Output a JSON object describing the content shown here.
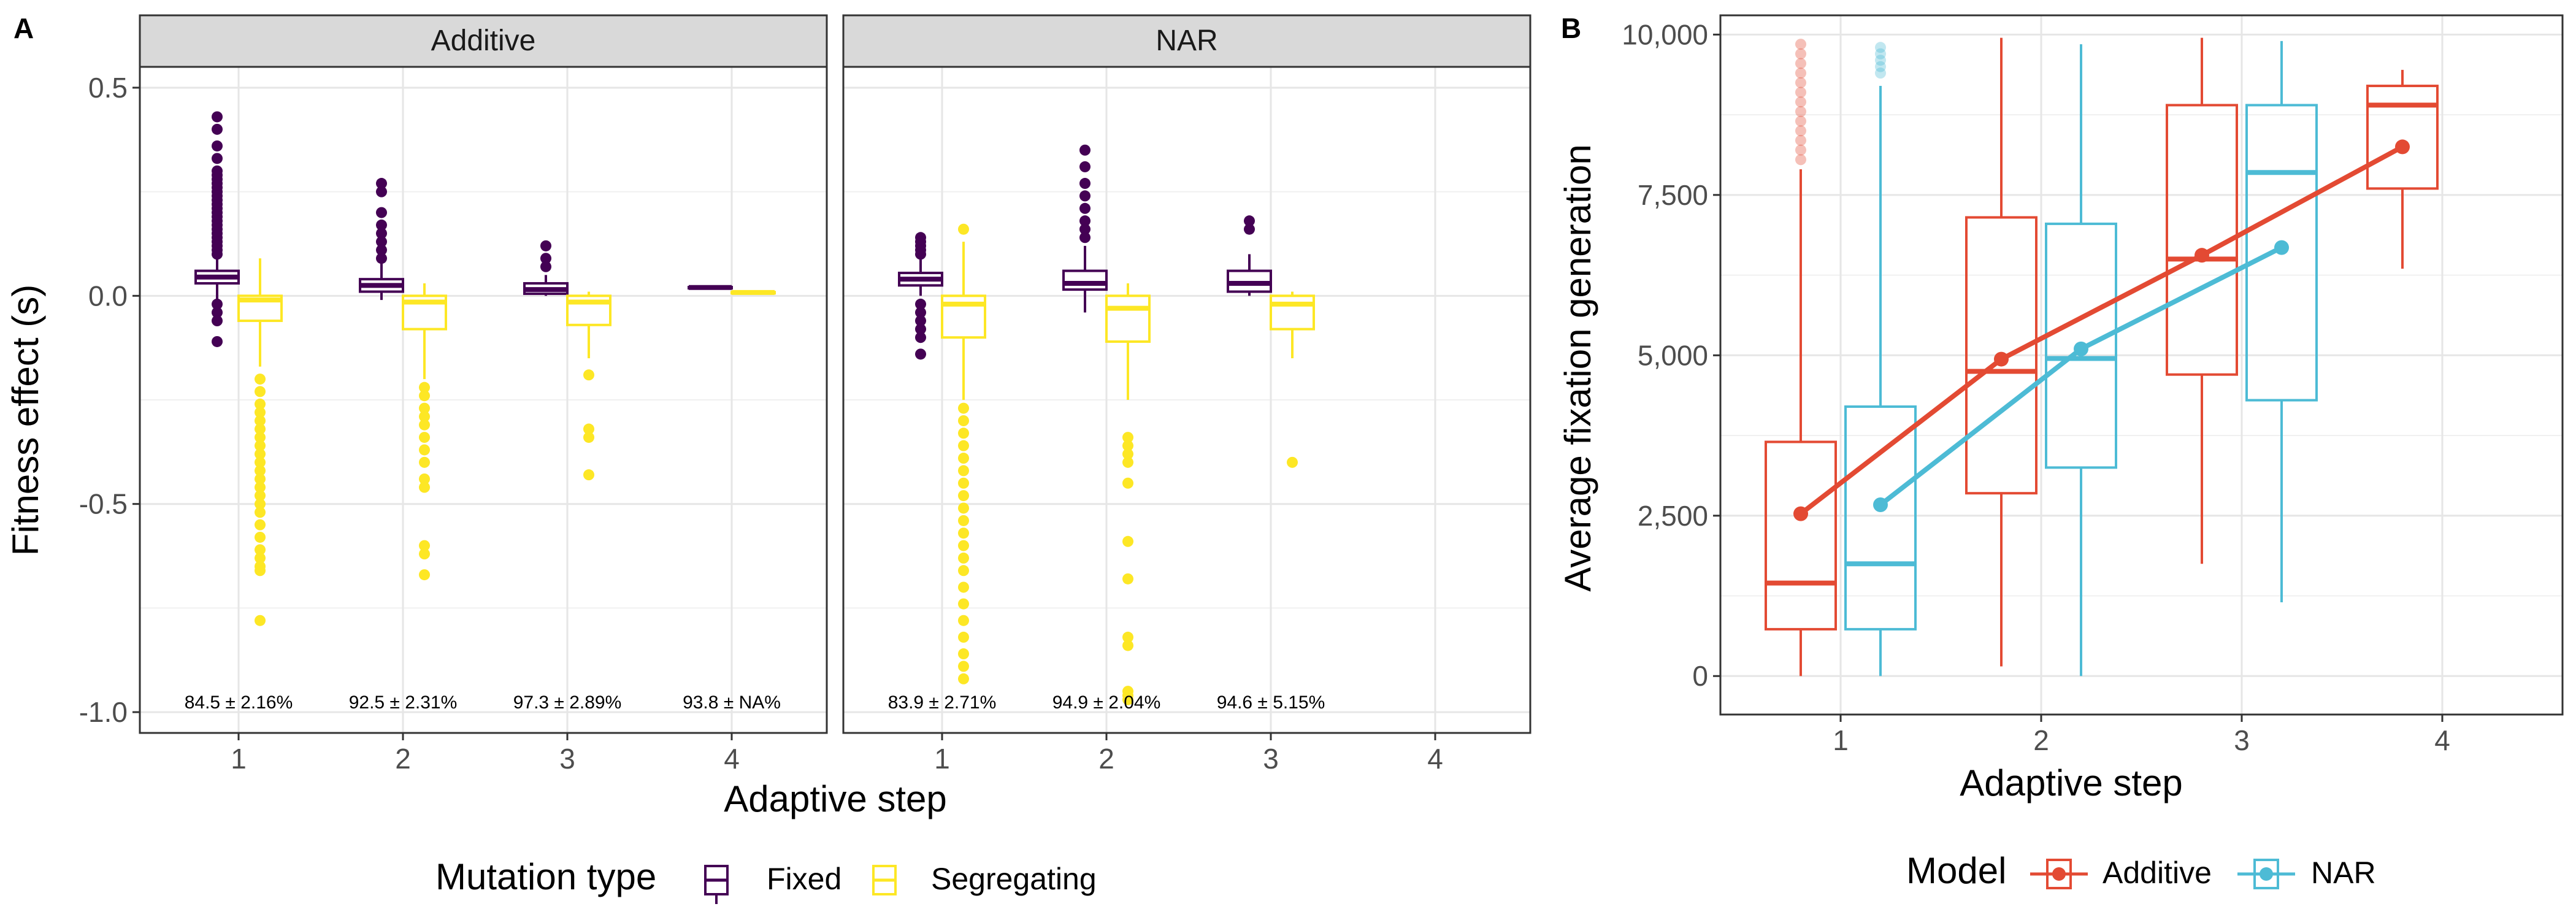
{
  "chart_data": [
    {
      "panel": "A",
      "type": "boxplot",
      "facets": [
        "Additive",
        "NAR"
      ],
      "xlabel": "Adaptive step",
      "ylabel": "Fitness effect (s)",
      "ylim": [
        -1.05,
        0.55
      ],
      "yticks": [
        0.5,
        0.0,
        -0.5,
        -1.0
      ],
      "ytick_labels": [
        "0.5",
        "0.0",
        "-0.5",
        "-1.0"
      ],
      "xticks": [
        1,
        2,
        3,
        4
      ],
      "xtick_labels": [
        "1",
        "2",
        "3",
        "4"
      ],
      "grid": true,
      "legend": {
        "title": "Mutation type",
        "position": "bottom",
        "entries": [
          {
            "label": "Fixed",
            "color": "#440154"
          },
          {
            "label": "Segregating",
            "color": "#FDE725"
          }
        ]
      },
      "series": [
        {
          "name": "Fixed",
          "color": "#440154",
          "boxes": {
            "Additive": [
              {
                "step": 1,
                "whisker_low": -0.01,
                "q1": 0.03,
                "median": 0.045,
                "q3": 0.06,
                "whisker_high": 0.09,
                "outliers": [
                  0.43,
                  0.4,
                  0.36,
                  0.33,
                  0.3,
                  0.29,
                  0.28,
                  0.27,
                  0.26,
                  0.25,
                  0.24,
                  0.23,
                  0.22,
                  0.21,
                  0.2,
                  0.19,
                  0.18,
                  0.17,
                  0.16,
                  0.15,
                  0.14,
                  0.13,
                  0.12,
                  0.11,
                  0.1,
                  -0.02,
                  -0.04,
                  -0.06,
                  -0.11
                ]
              },
              {
                "step": 2,
                "whisker_low": -0.01,
                "q1": 0.01,
                "median": 0.025,
                "q3": 0.04,
                "whisker_high": 0.08,
                "outliers": [
                  0.27,
                  0.25,
                  0.2,
                  0.17,
                  0.15,
                  0.13,
                  0.11,
                  0.09
                ]
              },
              {
                "step": 3,
                "whisker_low": 0.0,
                "q1": 0.005,
                "median": 0.015,
                "q3": 0.03,
                "whisker_high": 0.05,
                "outliers": [
                  0.12,
                  0.09,
                  0.07
                ]
              },
              {
                "step": 4,
                "whisker_low": 0.018,
                "q1": 0.019,
                "median": 0.02,
                "q3": 0.021,
                "whisker_high": 0.022,
                "outliers": []
              }
            ],
            "NAR": [
              {
                "step": 1,
                "whisker_low": 0.0,
                "q1": 0.025,
                "median": 0.04,
                "q3": 0.055,
                "whisker_high": 0.09,
                "outliers": [
                  0.14,
                  0.13,
                  0.12,
                  0.11,
                  0.1,
                  -0.02,
                  -0.04,
                  -0.06,
                  -0.08,
                  -0.1,
                  -0.14
                ]
              },
              {
                "step": 2,
                "whisker_low": -0.04,
                "q1": 0.015,
                "median": 0.03,
                "q3": 0.06,
                "whisker_high": 0.12,
                "outliers": [
                  0.35,
                  0.31,
                  0.27,
                  0.24,
                  0.21,
                  0.18,
                  0.16,
                  0.14
                ]
              },
              {
                "step": 3,
                "whisker_low": 0.0,
                "q1": 0.01,
                "median": 0.03,
                "q3": 0.06,
                "whisker_high": 0.1,
                "outliers": [
                  0.18,
                  0.16
                ]
              }
            ]
          }
        },
        {
          "name": "Segregating",
          "color": "#FDE725",
          "boxes": {
            "Additive": [
              {
                "step": 1,
                "whisker_low": -0.17,
                "q1": -0.06,
                "median": -0.01,
                "q3": 0.0,
                "whisker_high": 0.09,
                "outliers": [
                  -0.2,
                  -0.23,
                  -0.26,
                  -0.28,
                  -0.3,
                  -0.32,
                  -0.34,
                  -0.36,
                  -0.38,
                  -0.4,
                  -0.42,
                  -0.44,
                  -0.46,
                  -0.48,
                  -0.5,
                  -0.52,
                  -0.55,
                  -0.58,
                  -0.61,
                  -0.63,
                  -0.65,
                  -0.66,
                  -0.78
                ]
              },
              {
                "step": 2,
                "whisker_low": -0.2,
                "q1": -0.08,
                "median": -0.015,
                "q3": 0.0,
                "whisker_high": 0.03,
                "outliers": [
                  -0.22,
                  -0.24,
                  -0.27,
                  -0.29,
                  -0.31,
                  -0.34,
                  -0.37,
                  -0.4,
                  -0.44,
                  -0.46,
                  -0.6,
                  -0.62,
                  -0.67
                ]
              },
              {
                "step": 3,
                "whisker_low": -0.15,
                "q1": -0.07,
                "median": -0.015,
                "q3": 0.0,
                "whisker_high": 0.01,
                "outliers": [
                  -0.19,
                  -0.32,
                  -0.34,
                  -0.43
                ]
              },
              {
                "step": 4,
                "whisker_low": 0.005,
                "q1": 0.007,
                "median": 0.008,
                "q3": 0.009,
                "whisker_high": 0.01,
                "outliers": []
              }
            ],
            "NAR": [
              {
                "step": 1,
                "whisker_low": -0.25,
                "q1": -0.1,
                "median": -0.02,
                "q3": 0.0,
                "whisker_high": 0.13,
                "outliers": [
                  0.16,
                  -0.27,
                  -0.3,
                  -0.33,
                  -0.36,
                  -0.39,
                  -0.42,
                  -0.45,
                  -0.48,
                  -0.51,
                  -0.54,
                  -0.57,
                  -0.6,
                  -0.63,
                  -0.66,
                  -0.7,
                  -0.74,
                  -0.78,
                  -0.82,
                  -0.86,
                  -0.89,
                  -0.92
                ]
              },
              {
                "step": 2,
                "whisker_low": -0.25,
                "q1": -0.11,
                "median": -0.03,
                "q3": 0.0,
                "whisker_high": 0.03,
                "outliers": [
                  -0.34,
                  -0.36,
                  -0.38,
                  -0.4,
                  -0.45,
                  -0.59,
                  -0.68,
                  -0.82,
                  -0.84,
                  -0.95,
                  -0.96,
                  -0.97
                ]
              },
              {
                "step": 3,
                "whisker_low": -0.15,
                "q1": -0.08,
                "median": -0.02,
                "q3": 0.0,
                "whisker_high": 0.01,
                "outliers": [
                  -0.4
                ]
              }
            ]
          }
        }
      ],
      "annotations": {
        "Additive": [
          "84.5 ± 2.16%",
          "92.5 ± 2.31%",
          "97.3 ± 2.89%",
          "93.8 ± NA%"
        ],
        "NAR": [
          "83.9 ± 2.71%",
          "94.9 ± 2.04%",
          "94.6 ± 5.15%"
        ]
      }
    },
    {
      "panel": "B",
      "type": "boxplot",
      "xlabel": "Adaptive step",
      "ylabel": "Average fixation generation",
      "ylim": [
        -600,
        10300
      ],
      "yticks": [
        0,
        2500,
        5000,
        7500,
        10000
      ],
      "ytick_labels": [
        "0",
        "2,500",
        "5,000",
        "7,500",
        "10,000"
      ],
      "xticks": [
        1,
        2,
        3,
        4
      ],
      "xtick_labels": [
        "1",
        "2",
        "3",
        "4"
      ],
      "grid": true,
      "legend": {
        "title": "Model",
        "position": "bottom",
        "entries": [
          {
            "label": "Additive",
            "color": "#E34A33"
          },
          {
            "label": "NAR",
            "color": "#4DBBD5"
          }
        ]
      },
      "series": [
        {
          "name": "Additive",
          "color": "#E34A33",
          "boxes": [
            {
              "step": 1,
              "whisker_low": 0,
              "q1": 730,
              "median": 1450,
              "q3": 3650,
              "whisker_high": 7900,
              "outliers": [
                8050,
                8200,
                8350,
                8500,
                8650,
                8800,
                8950,
                9100,
                9250,
                9400,
                9550,
                9700,
                9850
              ]
            },
            {
              "step": 2,
              "whisker_low": 150,
              "q1": 2850,
              "median": 4750,
              "q3": 7150,
              "whisker_high": 9950,
              "outliers": []
            },
            {
              "step": 3,
              "whisker_low": 1750,
              "q1": 4700,
              "median": 6500,
              "q3": 8900,
              "whisker_high": 9950,
              "outliers": []
            },
            {
              "step": 4,
              "whisker_low": 6350,
              "q1": 7600,
              "median": 8900,
              "q3": 9200,
              "whisker_high": 9450,
              "outliers": []
            }
          ],
          "mean_line": [
            {
              "step": 1,
              "value": 2530
            },
            {
              "step": 2,
              "value": 4940
            },
            {
              "step": 3,
              "value": 6560
            },
            {
              "step": 4,
              "value": 8250
            }
          ]
        },
        {
          "name": "NAR",
          "color": "#4DBBD5",
          "boxes": [
            {
              "step": 1,
              "whisker_low": 0,
              "q1": 730,
              "median": 1750,
              "q3": 4200,
              "whisker_high": 9200,
              "outliers": [
                9400,
                9500,
                9600,
                9700,
                9800
              ]
            },
            {
              "step": 2,
              "whisker_low": 0,
              "q1": 3250,
              "median": 4950,
              "q3": 7050,
              "whisker_high": 9850,
              "outliers": []
            },
            {
              "step": 3,
              "whisker_low": 1150,
              "q1": 4300,
              "median": 7850,
              "q3": 8900,
              "whisker_high": 9900,
              "outliers": []
            }
          ],
          "mean_line": [
            {
              "step": 1,
              "value": 2670
            },
            {
              "step": 2,
              "value": 5100
            },
            {
              "step": 3,
              "value": 6680
            }
          ]
        }
      ]
    }
  ]
}
